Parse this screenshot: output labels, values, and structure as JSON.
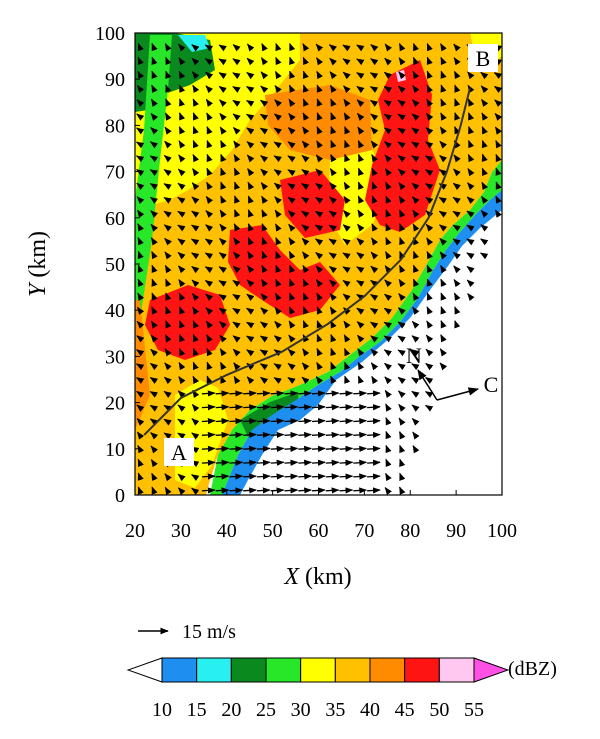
{
  "chart_data": {
    "type": "heatmap",
    "title": "",
    "x_axis": {
      "label_var": "X",
      "label_unit": "(km)",
      "range": [
        20,
        100
      ],
      "ticks": [
        "20",
        "30",
        "40",
        "50",
        "60",
        "70",
        "80",
        "90",
        "100"
      ]
    },
    "y_axis": {
      "label_var": "Y",
      "label_unit": "(km)",
      "range": [
        0,
        100
      ],
      "ticks": [
        "0",
        "10",
        "20",
        "30",
        "40",
        "50",
        "60",
        "70",
        "80",
        "90",
        "100"
      ]
    },
    "colorbar": {
      "unit": "(dBZ)",
      "levels": [
        "10",
        "15",
        "20",
        "25",
        "30",
        "35",
        "40",
        "45",
        "50",
        "55"
      ],
      "colors": [
        "#ffffff",
        "#1e8ff0",
        "#28f0f0",
        "#0a8a1e",
        "#28e628",
        "#ffff00",
        "#ffc000",
        "#ff8c00",
        "#ff1414",
        "#ffc8f0",
        "#ff50e6"
      ]
    },
    "reference_vector": {
      "label": "15 m/s",
      "speed_ms": 15
    },
    "annotations": [
      {
        "text": "A",
        "x": 29,
        "y": 10
      },
      {
        "text": "B",
        "x": 95,
        "y": 94
      },
      {
        "text": "N",
        "x": 84,
        "y": 30
      },
      {
        "text": "C",
        "x": 99,
        "y": 24
      }
    ],
    "cross_section": {
      "from": "A",
      "to": "B",
      "points": [
        [
          22,
          13
        ],
        [
          30,
          21
        ],
        [
          40,
          26
        ],
        [
          52,
          31
        ],
        [
          62,
          37
        ],
        [
          70,
          43
        ],
        [
          78,
          51
        ],
        [
          84,
          60
        ],
        [
          88,
          70
        ],
        [
          91,
          80
        ],
        [
          93,
          88
        ]
      ]
    },
    "north_arrow": {
      "origin": [
        88,
        21
      ],
      "north_tip": [
        84,
        27
      ],
      "east_tip": [
        96,
        23
      ]
    },
    "grid": false,
    "legend_position": "bottom"
  }
}
